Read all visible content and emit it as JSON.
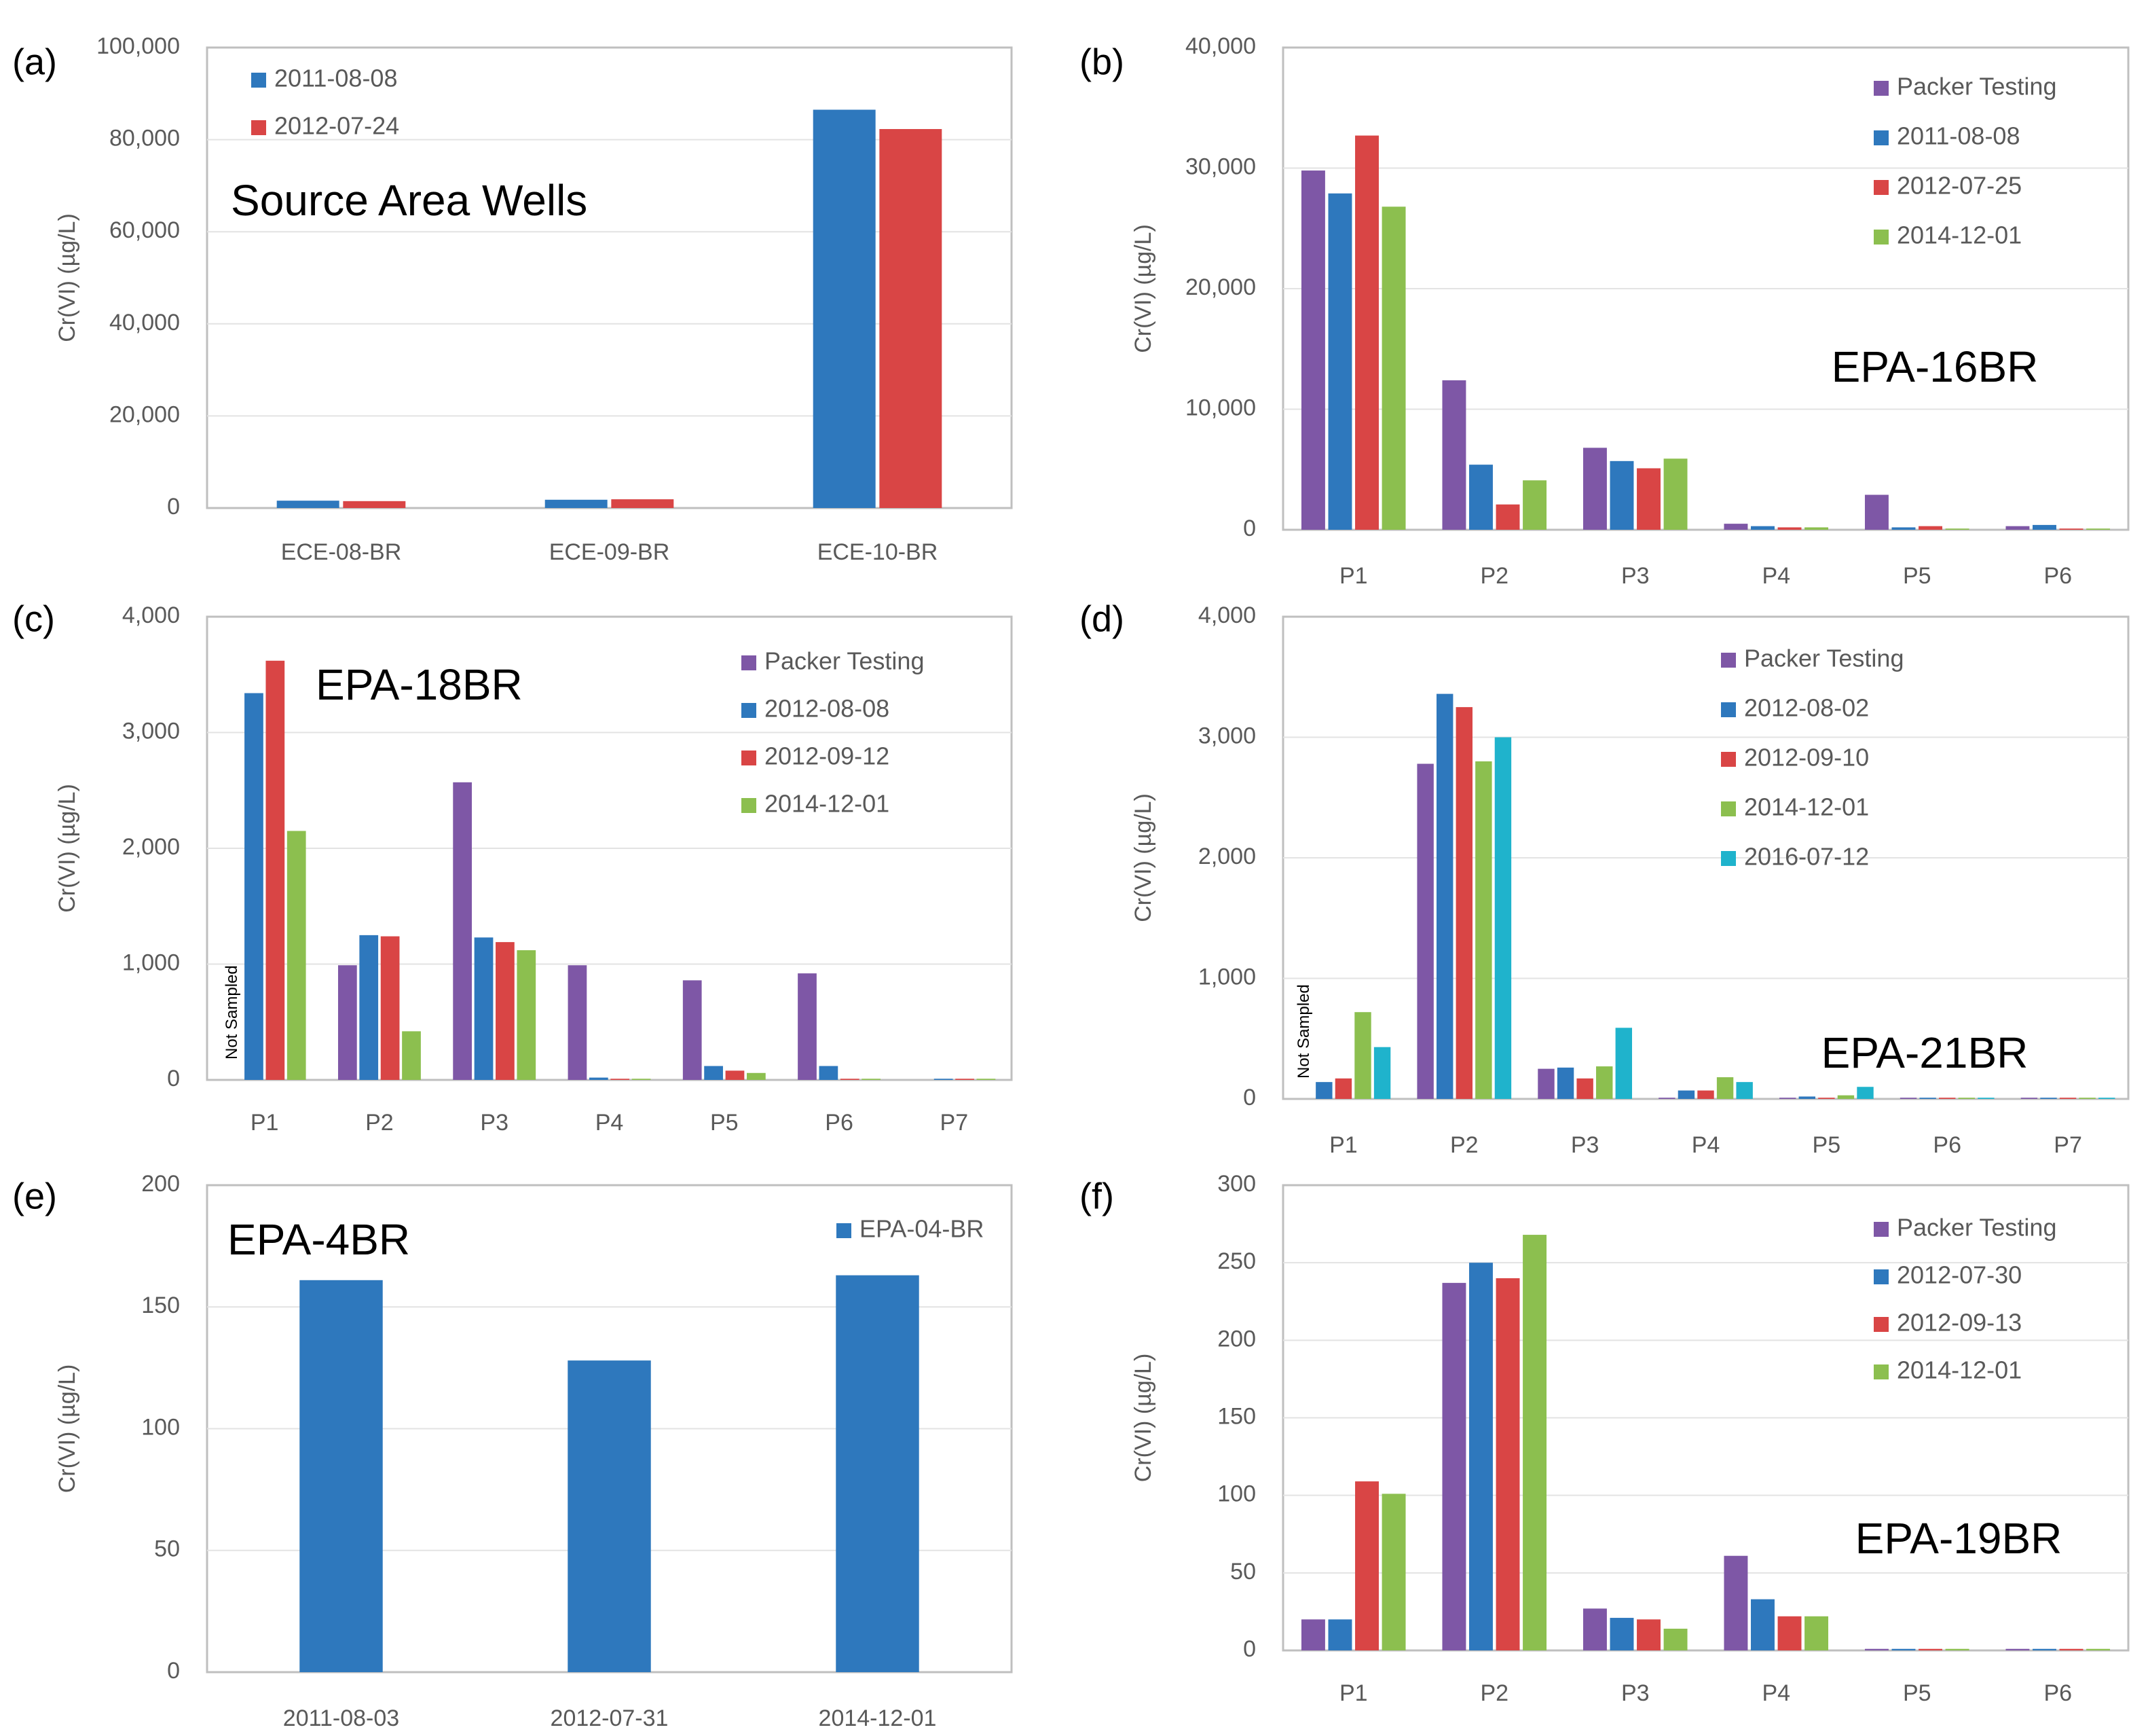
{
  "figure_labels": [
    "(a)",
    "(b)",
    "(c)",
    "(d)",
    "(e)",
    "(f)"
  ],
  "colors": {
    "Packer Testing": "#7e57a6",
    "blue": "#2e78bd",
    "red": "#d94545",
    "green": "#8cbf4f",
    "cyan": "#1fb3cc",
    "gridline": "#d9d9d9",
    "axis": "#bfbfbf"
  },
  "chart_data": [
    {
      "panel": "(a)",
      "type": "bar",
      "title": "Source Area Wells",
      "ylabel": "Cr(VI) (µg/L)",
      "ylim": [
        0,
        100000
      ],
      "yticks": [
        0,
        20000,
        40000,
        60000,
        80000,
        100000
      ],
      "ytick_labels": [
        "0",
        "20,000",
        "40,000",
        "60,000",
        "80,000",
        "100,000"
      ],
      "categories": [
        "ECE-08-BR",
        "ECE-09-BR",
        "ECE-10-BR"
      ],
      "series": [
        {
          "name": "2011-08-08",
          "color": "#2e78bd",
          "values": [
            1600,
            1800,
            86500
          ]
        },
        {
          "name": "2012-07-24",
          "color": "#d94545",
          "values": [
            1500,
            1900,
            82300
          ]
        }
      ],
      "not_sampled": null
    },
    {
      "panel": "(b)",
      "type": "bar",
      "title": "EPA-16BR",
      "ylabel": "Cr(VI) (µg/L)",
      "ylim": [
        0,
        40000
      ],
      "yticks": [
        0,
        10000,
        20000,
        30000,
        40000
      ],
      "ytick_labels": [
        "0",
        "10,000",
        "20,000",
        "30,000",
        "40,000"
      ],
      "categories": [
        "P1",
        "P2",
        "P3",
        "P4",
        "P5",
        "P6"
      ],
      "series": [
        {
          "name": "Packer Testing",
          "color": "#7e57a6",
          "values": [
            29800,
            12400,
            6800,
            500,
            2900,
            300
          ]
        },
        {
          "name": "2011-08-08",
          "color": "#2e78bd",
          "values": [
            27900,
            5400,
            5700,
            300,
            200,
            400
          ]
        },
        {
          "name": "2012-07-25",
          "color": "#d94545",
          "values": [
            32700,
            2100,
            5100,
            200,
            300,
            100
          ]
        },
        {
          "name": "2014-12-01",
          "color": "#8cbf4f",
          "values": [
            26800,
            4100,
            5900,
            200,
            100,
            100
          ]
        }
      ],
      "not_sampled": null
    },
    {
      "panel": "(c)",
      "type": "bar",
      "title": "EPA-18BR",
      "ylabel": "Cr(VI) (µg/L)",
      "ylim": [
        0,
        4000
      ],
      "yticks": [
        0,
        1000,
        2000,
        3000,
        4000
      ],
      "ytick_labels": [
        "0",
        "1,000",
        "2,000",
        "3,000",
        "4,000"
      ],
      "categories": [
        "P1",
        "P2",
        "P3",
        "P4",
        "P5",
        "P6",
        "P7"
      ],
      "series": [
        {
          "name": "Packer Testing",
          "color": "#7e57a6",
          "values": [
            0,
            990,
            2570,
            990,
            860,
            920,
            0
          ]
        },
        {
          "name": "2012-08-08",
          "color": "#2e78bd",
          "values": [
            3340,
            1250,
            1230,
            20,
            120,
            120,
            10
          ]
        },
        {
          "name": "2012-09-12",
          "color": "#d94545",
          "values": [
            3620,
            1240,
            1190,
            10,
            80,
            10,
            10
          ]
        },
        {
          "name": "2014-12-01",
          "color": "#8cbf4f",
          "values": [
            2150,
            420,
            1120,
            10,
            60,
            10,
            10
          ]
        }
      ],
      "not_sampled": {
        "text": "Not Sampled",
        "category": "P1"
      }
    },
    {
      "panel": "(d)",
      "type": "bar",
      "title": "EPA-21BR",
      "ylabel": "Cr(VI) (µg/L)",
      "ylim": [
        0,
        4000
      ],
      "yticks": [
        0,
        1000,
        2000,
        3000,
        4000
      ],
      "ytick_labels": [
        "0",
        "1,000",
        "2,000",
        "3,000",
        "4,000"
      ],
      "categories": [
        "P1",
        "P2",
        "P3",
        "P4",
        "P5",
        "P6",
        "P7"
      ],
      "series": [
        {
          "name": "Packer Testing",
          "color": "#7e57a6",
          "values": [
            0,
            2780,
            250,
            10,
            10,
            10,
            10
          ]
        },
        {
          "name": "2012-08-02",
          "color": "#2e78bd",
          "values": [
            140,
            3360,
            260,
            70,
            20,
            10,
            10
          ]
        },
        {
          "name": "2012-09-10",
          "color": "#d94545",
          "values": [
            170,
            3250,
            170,
            70,
            10,
            10,
            10
          ]
        },
        {
          "name": "2014-12-01",
          "color": "#8cbf4f",
          "values": [
            720,
            2800,
            270,
            180,
            30,
            10,
            10
          ]
        },
        {
          "name": "2016-07-12",
          "color": "#1fb3cc",
          "values": [
            430,
            3000,
            590,
            140,
            100,
            10,
            10
          ]
        }
      ],
      "not_sampled": {
        "text": "Not Sampled",
        "category": "P1"
      }
    },
    {
      "panel": "(e)",
      "type": "bar",
      "title": "EPA-4BR",
      "ylabel": "Cr(VI) (µg/L)",
      "ylim": [
        0,
        200
      ],
      "yticks": [
        0,
        50,
        100,
        150,
        200
      ],
      "ytick_labels": [
        "0",
        "50",
        "100",
        "150",
        "200"
      ],
      "categories": [
        "2011-08-03",
        "2012-07-31",
        "2014-12-01"
      ],
      "series": [
        {
          "name": "EPA-04-BR",
          "color": "#2e78bd",
          "values": [
            161,
            128,
            163
          ]
        }
      ],
      "not_sampled": null
    },
    {
      "panel": "(f)",
      "type": "bar",
      "title": "EPA-19BR",
      "ylabel": "Cr(VI) (µg/L)",
      "ylim": [
        0,
        300
      ],
      "yticks": [
        0,
        50,
        100,
        150,
        200,
        250,
        300
      ],
      "ytick_labels": [
        "0",
        "50",
        "100",
        "150",
        "200",
        "250",
        "300"
      ],
      "categories": [
        "P1",
        "P2",
        "P3",
        "P4",
        "P5",
        "P6"
      ],
      "series": [
        {
          "name": "Packer Testing",
          "color": "#7e57a6",
          "values": [
            20,
            237,
            27,
            61,
            1,
            1
          ]
        },
        {
          "name": "2012-07-30",
          "color": "#2e78bd",
          "values": [
            20,
            250,
            21,
            33,
            1,
            1
          ]
        },
        {
          "name": "2012-09-13",
          "color": "#d94545",
          "values": [
            109,
            240,
            20,
            22,
            1,
            1
          ]
        },
        {
          "name": "2014-12-01",
          "color": "#8cbf4f",
          "values": [
            101,
            268,
            14,
            22,
            1,
            1
          ]
        }
      ],
      "not_sampled": null
    }
  ]
}
